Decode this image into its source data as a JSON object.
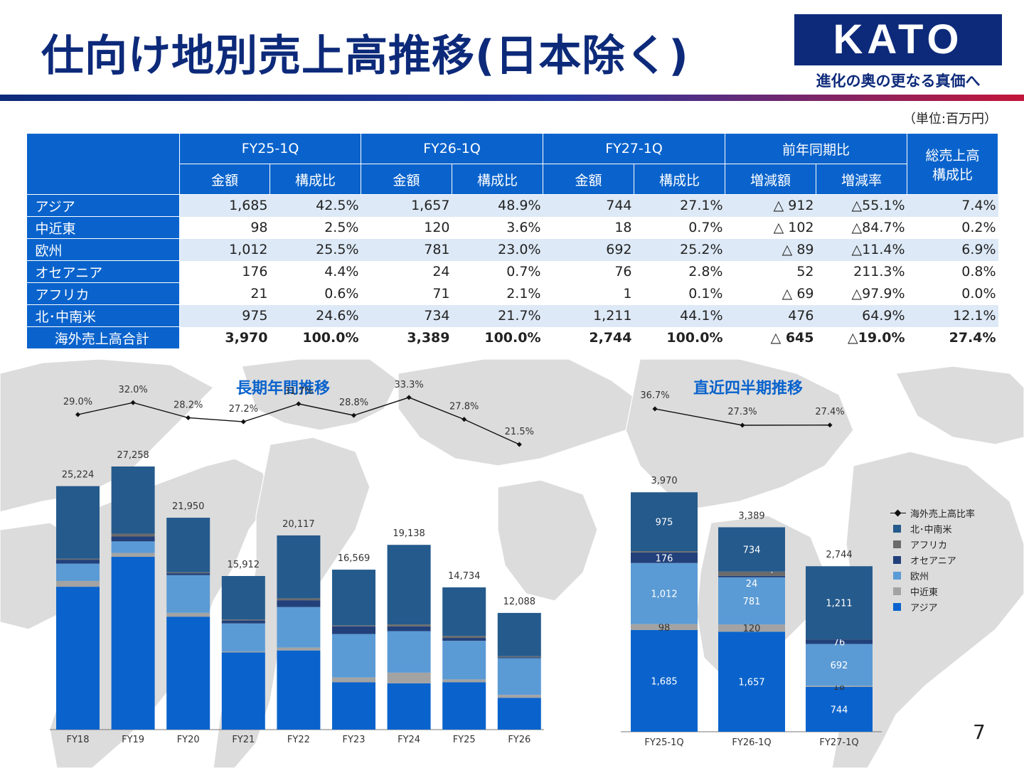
{
  "header": {
    "title": "仕向け地別売上高推移(日本除く)",
    "logo": "KATO",
    "tagline": "進化の奥の更なる真価へ"
  },
  "unit_note": "（単位:百万円）",
  "table": {
    "period_headers": [
      "FY25-1Q",
      "FY26-1Q",
      "FY27-1Q",
      "前年同期比"
    ],
    "total_ratio_header": "総売上高構成比",
    "sub_headers": [
      "金額",
      "構成比",
      "金額",
      "構成比",
      "金額",
      "構成比",
      "増減額",
      "増減率"
    ],
    "rows": [
      {
        "region": "アジア",
        "values": [
          "1,685",
          "42.5%",
          "1,657",
          "48.9%",
          "744",
          "27.1%",
          "△ 912",
          "△55.1%",
          "7.4%"
        ]
      },
      {
        "region": "中近東",
        "values": [
          "98",
          "2.5%",
          "120",
          "3.6%",
          "18",
          "0.7%",
          "△ 102",
          "△84.7%",
          "0.2%"
        ]
      },
      {
        "region": "欧州",
        "values": [
          "1,012",
          "25.5%",
          "781",
          "23.0%",
          "692",
          "25.2%",
          "△ 89",
          "△11.4%",
          "6.9%"
        ]
      },
      {
        "region": "オセアニア",
        "values": [
          "176",
          "4.4%",
          "24",
          "0.7%",
          "76",
          "2.8%",
          "52",
          "211.3%",
          "0.8%"
        ]
      },
      {
        "region": "アフリカ",
        "values": [
          "21",
          "0.6%",
          "71",
          "2.1%",
          "1",
          "0.1%",
          "△ 69",
          "△97.9%",
          "0.0%"
        ]
      },
      {
        "region": "北･中南米",
        "values": [
          "975",
          "24.6%",
          "734",
          "21.7%",
          "1,211",
          "44.1%",
          "476",
          "64.9%",
          "12.1%"
        ]
      },
      {
        "region": "海外売上高合計",
        "values": [
          "3,970",
          "100.0%",
          "3,389",
          "100.0%",
          "2,744",
          "100.0%",
          "△ 645",
          "△19.0%",
          "27.4%"
        ]
      }
    ]
  },
  "colors": {
    "asia": "#0a63cc",
    "middle_east": "#a3a3a3",
    "europe": "#5b9bd5",
    "oceania": "#22407a",
    "africa": "#6b6b6b",
    "americas": "#255a8c",
    "ratio_line": "#111111",
    "header_blue": "#0a63cc",
    "title_navy": "#0d2a7a"
  },
  "legend": {
    "items": [
      {
        "label": "海外売上高比率",
        "kind": "line"
      },
      {
        "label": "北･中南米",
        "kind": "americas"
      },
      {
        "label": "アフリカ",
        "kind": "africa"
      },
      {
        "label": "オセアニア",
        "kind": "oceania"
      },
      {
        "label": "欧州",
        "kind": "europe"
      },
      {
        "label": "中近東",
        "kind": "middle_east"
      },
      {
        "label": "アジア",
        "kind": "asia"
      }
    ]
  },
  "chart_data": [
    {
      "type": "bar",
      "stacked": true,
      "title": "長期年間推移",
      "categories": [
        "FY18",
        "FY19",
        "FY20",
        "FY21",
        "FY22",
        "FY23",
        "FY24",
        "FY25",
        "FY26"
      ],
      "totals": [
        25224,
        27258,
        21950,
        15912,
        20117,
        16569,
        19138,
        14734,
        12088
      ],
      "total_labels": [
        "25,224",
        "27,258",
        "21,950",
        "15,912",
        "20,117",
        "16,569",
        "19,138",
        "14,734",
        "12,088"
      ],
      "series": [
        {
          "name": "アジア",
          "key": "asia",
          "values": [
            14800,
            17900,
            11700,
            8000,
            8200,
            4900,
            4800,
            4900,
            3300
          ]
        },
        {
          "name": "中近東",
          "key": "middle_east",
          "values": [
            600,
            400,
            400,
            100,
            300,
            500,
            1100,
            300,
            300
          ]
        },
        {
          "name": "欧州",
          "key": "europe",
          "values": [
            1800,
            1200,
            3900,
            2900,
            4200,
            4500,
            4300,
            4000,
            3800
          ]
        },
        {
          "name": "オセアニア",
          "key": "oceania",
          "values": [
            400,
            500,
            200,
            300,
            700,
            800,
            500,
            300,
            100
          ]
        },
        {
          "name": "アフリカ",
          "key": "africa",
          "values": [
            100,
            300,
            100,
            100,
            200,
            100,
            200,
            200,
            100
          ]
        },
        {
          "name": "北･中南米",
          "key": "americas",
          "values": [
            7524,
            6958,
            5650,
            4512,
            6517,
            5769,
            8238,
            5034,
            4488
          ]
        }
      ],
      "ratio_line": {
        "name": "海外売上高比率",
        "values": [
          29.0,
          32.0,
          28.2,
          27.2,
          31.7,
          28.8,
          33.3,
          27.8,
          21.5
        ],
        "labels": [
          "29.0%",
          "32.0%",
          "28.2%",
          "27.2%",
          "31.7%",
          "28.8%",
          "33.3%",
          "27.8%",
          "21.5%"
        ]
      }
    },
    {
      "type": "bar",
      "stacked": true,
      "title": "直近四半期推移",
      "categories": [
        "FY25-1Q",
        "FY26-1Q",
        "FY27-1Q"
      ],
      "totals": [
        3970,
        3389,
        2744
      ],
      "total_labels": [
        "3,970",
        "3,389",
        "2,744"
      ],
      "series": [
        {
          "name": "アジア",
          "key": "asia",
          "values": [
            1685,
            1657,
            744
          ],
          "labels": [
            "1,685",
            "1,657",
            "744"
          ]
        },
        {
          "name": "中近東",
          "key": "middle_east",
          "values": [
            98,
            120,
            18
          ],
          "labels": [
            "98",
            "120",
            "18"
          ]
        },
        {
          "name": "欧州",
          "key": "europe",
          "values": [
            1012,
            781,
            692
          ],
          "labels": [
            "1,012",
            "781",
            "692"
          ]
        },
        {
          "name": "オセアニア",
          "key": "oceania",
          "values": [
            176,
            24,
            76
          ],
          "labels": [
            "176",
            "24",
            "76"
          ]
        },
        {
          "name": "アフリカ",
          "key": "africa",
          "values": [
            21,
            71,
            1
          ],
          "labels": [
            "21",
            "71",
            "1"
          ]
        },
        {
          "name": "北･中南米",
          "key": "americas",
          "values": [
            975,
            734,
            1211
          ],
          "labels": [
            "975",
            "734",
            "1,211"
          ]
        }
      ],
      "ratio_line": {
        "name": "海外売上高比率",
        "values": [
          36.7,
          27.3,
          27.4
        ],
        "labels": [
          "36.7%",
          "27.3%",
          "27.4%"
        ]
      }
    }
  ],
  "page_number": "7"
}
